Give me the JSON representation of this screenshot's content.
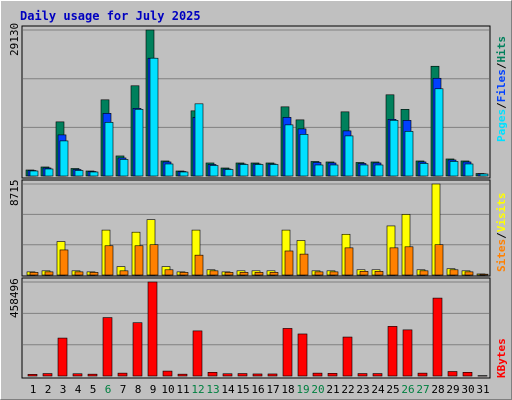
{
  "title": "Daily usage for July 2025",
  "colors": {
    "hits": "#00805c",
    "files": "#0040ff",
    "pages": "#00e0ff",
    "visits": "#ffff00",
    "sites": "#ff8000",
    "kbytes": "#ff0000",
    "weekend_label": "#008040",
    "weekday_label": "#000000"
  },
  "panels": {
    "top": {
      "ymax_label": "29130",
      "labels": [
        "Pages",
        "Files",
        "Hits"
      ],
      "separator": "/"
    },
    "middle": {
      "ymax_label": "8715",
      "labels": [
        "Sites",
        "Visits"
      ],
      "separator": "/"
    },
    "bottom": {
      "ymax_label": "458496",
      "labels": [
        "KBytes"
      ]
    }
  },
  "chart_data": [
    {
      "type": "bar",
      "panel": "top",
      "categories": [
        "1",
        "2",
        "3",
        "4",
        "5",
        "6",
        "7",
        "8",
        "9",
        "10",
        "11",
        "12",
        "13",
        "14",
        "15",
        "16",
        "17",
        "18",
        "19",
        "20",
        "21",
        "22",
        "23",
        "24",
        "25",
        "26",
        "27",
        "28",
        "29",
        "30",
        "31"
      ],
      "ylim": [
        0,
        29130
      ],
      "series": [
        {
          "name": "Hits",
          "values": [
            1200,
            1800,
            10800,
            1500,
            1000,
            15200,
            4000,
            18000,
            29130,
            3000,
            1000,
            13000,
            2600,
            1600,
            2600,
            2600,
            2600,
            13800,
            11200,
            2900,
            2800,
            12800,
            2700,
            2800,
            16200,
            13300,
            3000,
            21900,
            3400,
            3000,
            500
          ]
        },
        {
          "name": "Files",
          "values": [
            1100,
            1600,
            8200,
            1300,
            900,
            12500,
            3600,
            13500,
            23500,
            2800,
            900,
            11700,
            2300,
            1400,
            2400,
            2400,
            2400,
            11700,
            9400,
            2700,
            2600,
            9000,
            2500,
            2600,
            11300,
            11100,
            2800,
            19500,
            3200,
            2800,
            450
          ]
        },
        {
          "name": "Pages",
          "values": [
            1000,
            1400,
            7000,
            1100,
            800,
            10700,
            3300,
            13300,
            23500,
            2400,
            800,
            14400,
            2100,
            1300,
            2300,
            2300,
            2300,
            10200,
            8300,
            2200,
            2200,
            8000,
            2200,
            2200,
            11100,
            8900,
            2500,
            17400,
            2900,
            2400,
            400
          ]
        }
      ]
    },
    {
      "type": "bar",
      "panel": "middle",
      "categories": [
        "1",
        "2",
        "3",
        "4",
        "5",
        "6",
        "7",
        "8",
        "9",
        "10",
        "11",
        "12",
        "13",
        "14",
        "15",
        "16",
        "17",
        "18",
        "19",
        "20",
        "21",
        "22",
        "23",
        "24",
        "25",
        "26",
        "27",
        "28",
        "29",
        "30",
        "31"
      ],
      "ylim": [
        0,
        8715
      ],
      "series": [
        {
          "name": "Visits",
          "values": [
            300,
            400,
            3200,
            400,
            300,
            4300,
            800,
            4100,
            5300,
            800,
            300,
            4300,
            500,
            300,
            400,
            400,
            400,
            4300,
            3300,
            400,
            400,
            3900,
            500,
            500,
            4700,
            5800,
            500,
            8715,
            600,
            400,
            100
          ]
        },
        {
          "name": "Sites",
          "values": [
            250,
            300,
            2400,
            300,
            250,
            2800,
            400,
            2800,
            2900,
            500,
            250,
            1900,
            400,
            250,
            250,
            250,
            250,
            2300,
            2000,
            300,
            300,
            2600,
            350,
            350,
            2600,
            2700,
            400,
            2900,
            500,
            300,
            80
          ]
        }
      ]
    },
    {
      "type": "bar",
      "panel": "bottom",
      "categories": [
        "1",
        "2",
        "3",
        "4",
        "5",
        "6",
        "7",
        "8",
        "9",
        "10",
        "11",
        "12",
        "13",
        "14",
        "15",
        "16",
        "17",
        "18",
        "19",
        "20",
        "21",
        "22",
        "23",
        "24",
        "25",
        "26",
        "27",
        "28",
        "29",
        "30",
        "31"
      ],
      "ylim": [
        0,
        458496
      ],
      "series": [
        {
          "name": "KBytes",
          "values": [
            8000,
            12000,
            185000,
            11000,
            9000,
            285000,
            14000,
            260000,
            458496,
            24000,
            9000,
            220000,
            18000,
            11000,
            12000,
            10000,
            10000,
            232000,
            205000,
            14000,
            13000,
            190000,
            12000,
            12000,
            242000,
            225000,
            14000,
            380000,
            22000,
            18000,
            2000
          ]
        }
      ]
    }
  ],
  "weekend_days": [
    6,
    12,
    13,
    19,
    20,
    26,
    27
  ]
}
